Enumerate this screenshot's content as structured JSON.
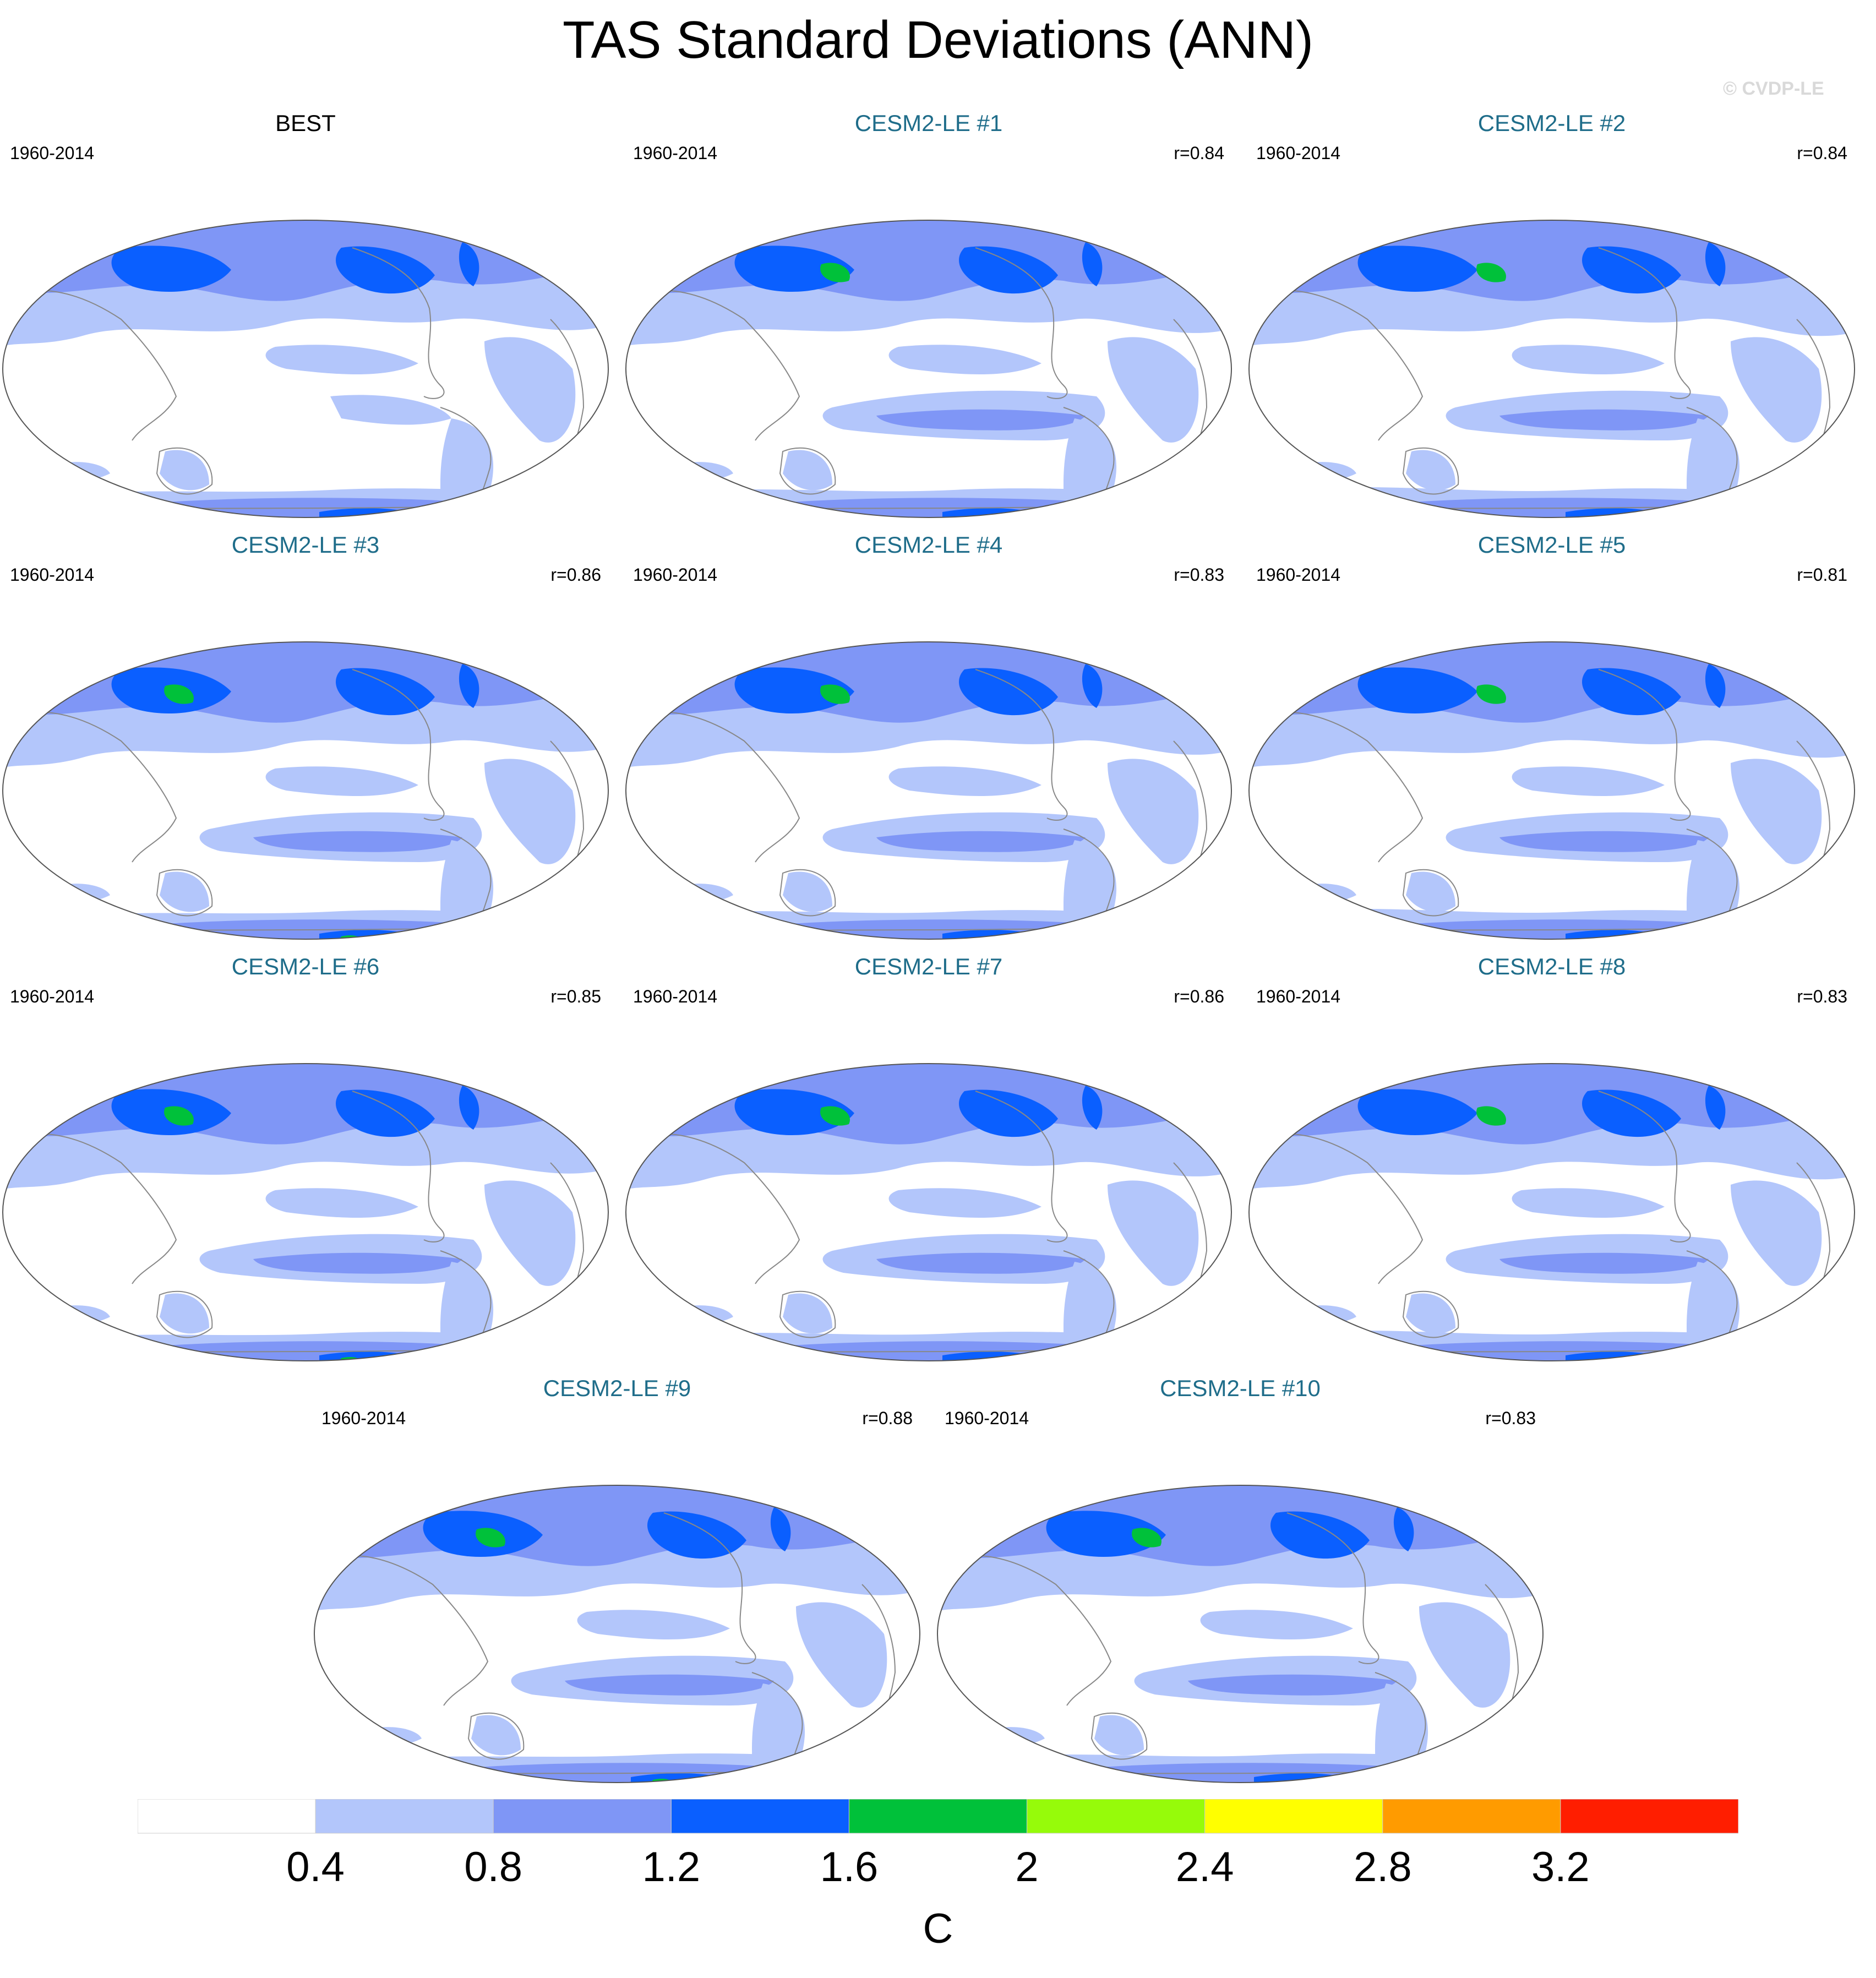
{
  "title": "TAS Standard Deviations (ANN)",
  "watermark": "© CVDP-LE",
  "panels": [
    {
      "title": "BEST",
      "period": "1960-2014",
      "r": "",
      "observed": true
    },
    {
      "title": "CESM2-LE #1",
      "period": "1960-2014",
      "r": "r=0.84"
    },
    {
      "title": "CESM2-LE #2",
      "period": "1960-2014",
      "r": "r=0.84"
    },
    {
      "title": "CESM2-LE #3",
      "period": "1960-2014",
      "r": "r=0.86"
    },
    {
      "title": "CESM2-LE #4",
      "period": "1960-2014",
      "r": "r=0.83"
    },
    {
      "title": "CESM2-LE #5",
      "period": "1960-2014",
      "r": "r=0.81"
    },
    {
      "title": "CESM2-LE #6",
      "period": "1960-2014",
      "r": "r=0.85"
    },
    {
      "title": "CESM2-LE #7",
      "period": "1960-2014",
      "r": "r=0.86"
    },
    {
      "title": "CESM2-LE #8",
      "period": "1960-2014",
      "r": "r=0.83"
    },
    {
      "title": "CESM2-LE #9",
      "period": "1960-2014",
      "r": "r=0.88"
    },
    {
      "title": "CESM2-LE #10",
      "period": "1960-2014",
      "r": "r=0.83"
    }
  ],
  "colorbar": {
    "labels": [
      "0.4",
      "0.8",
      "1.2",
      "1.6",
      "2",
      "2.4",
      "2.8",
      "3.2"
    ],
    "colors": [
      "#ffffff",
      "#b3c6fb",
      "#7f96f6",
      "#0a5fff",
      "#00c13a",
      "#96fb0a",
      "#ffff00",
      "#ff9b00",
      "#ff1e00"
    ],
    "units": "C"
  },
  "map_colors": {
    "land_outline": "#888888",
    "frame": "#555555",
    "level1": "#b3c6fb",
    "level2": "#7f96f6",
    "level3": "#0a5fff",
    "level4": "#00c13a",
    "level5": "#96fb0a"
  }
}
